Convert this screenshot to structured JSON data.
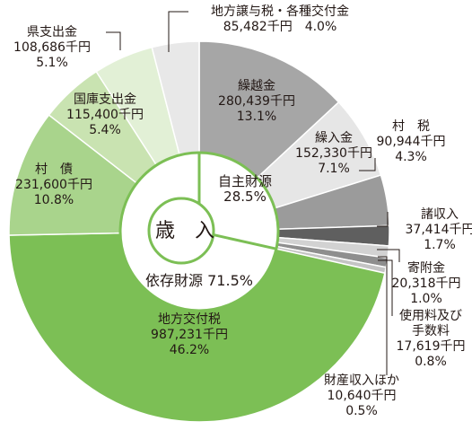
{
  "chart_data": {
    "type": "pie",
    "center_label": "歳　入",
    "total_percent_note": "",
    "groups": [
      {
        "name": "自主財源",
        "percent_label": "28.5%",
        "text": "自主財源\n28.5%"
      },
      {
        "name": "依存財源",
        "percent_label": "71.5%",
        "text": "依存財源 71.5%"
      }
    ],
    "slices": [
      {
        "name": "繰越金",
        "amount": "280,439千円",
        "percent": 13.1,
        "percent_label": "13.1%",
        "group": "自主財源",
        "color": "#a6a6a6"
      },
      {
        "name": "繰入金",
        "amount": "152,330千円",
        "percent": 7.1,
        "percent_label": "7.1%",
        "group": "自主財源",
        "color": "#e6e6e6"
      },
      {
        "name": "村　税",
        "amount": "90,944千円",
        "percent": 4.3,
        "percent_label": "4.3%",
        "group": "自主財源",
        "color": "#9b9b9b"
      },
      {
        "name": "諸収入",
        "amount": "37,414千円",
        "percent": 1.7,
        "percent_label": "1.7%",
        "group": "自主財源",
        "color": "#5f5f5f"
      },
      {
        "name": "寄附金",
        "amount": "20,318千円",
        "percent": 1.0,
        "percent_label": "1.0%",
        "group": "自主財源",
        "color": "#d2d2d2"
      },
      {
        "name": "使用料及び\n手数料",
        "amount": "17,619千円",
        "percent": 0.8,
        "percent_label": "0.8%",
        "group": "自主財源",
        "color": "#8e8e8e"
      },
      {
        "name": "財産収入ほか",
        "amount": "10,640千円",
        "percent": 0.5,
        "percent_label": "0.5%",
        "group": "自主財源",
        "color": "#c4c4c4"
      },
      {
        "name": "地方交付税",
        "amount": "987,231千円",
        "percent": 46.2,
        "percent_label": "46.2%",
        "group": "依存財源",
        "color": "#7cbf55"
      },
      {
        "name": "村　債",
        "amount": "231,600千円",
        "percent": 10.8,
        "percent_label": "10.8%",
        "group": "依存財源",
        "color": "#a9d48c"
      },
      {
        "name": "国庫支出金",
        "amount": "115,400千円",
        "percent": 5.4,
        "percent_label": "5.4%",
        "group": "依存財源",
        "color": "#c9e3b1"
      },
      {
        "name": "県支出金",
        "amount": "108,686千円",
        "percent": 5.1,
        "percent_label": "5.1%",
        "group": "依存財源",
        "color": "#e2f0d6"
      },
      {
        "name": "地方譲与税・各種交付金",
        "amount": "85,482千円",
        "percent": 4.0,
        "percent_label": "4.0%",
        "group": "依存財源",
        "color": "#e8e8e8"
      }
    ]
  }
}
